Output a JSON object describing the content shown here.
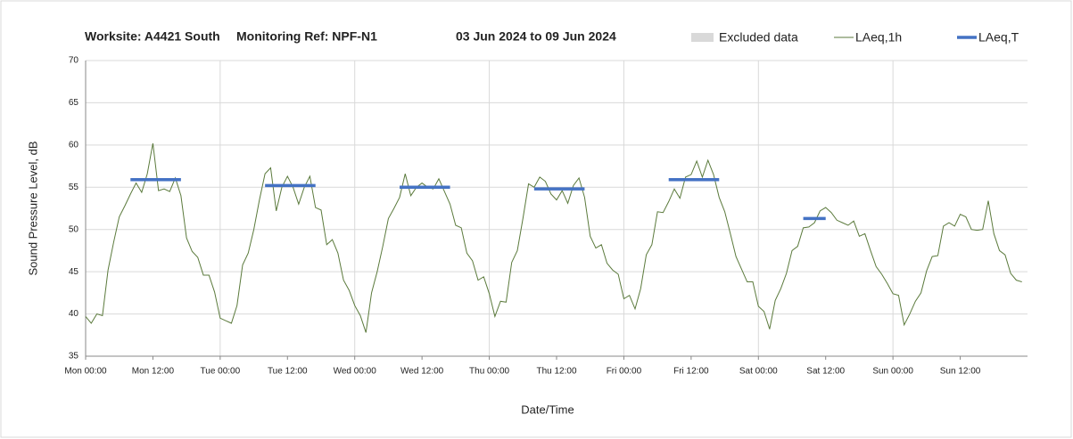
{
  "chart_data": {
    "type": "line",
    "title_parts": [
      "Worksite: A4421 South",
      "Monitoring Ref: NPF-N1",
      "03 Jun 2024 to 09 Jun 2024"
    ],
    "x_label": "Date/Time",
    "y_label": "Sound Pressure Level, dB",
    "excluded_data": {
      "name": "Excluded data",
      "color": "#d9d9d9"
    },
    "categories": [
      "Mon 00:00",
      null,
      null,
      null,
      null,
      null,
      null,
      null,
      null,
      null,
      null,
      null,
      "Mon 12:00",
      null,
      null,
      null,
      null,
      null,
      null,
      null,
      null,
      null,
      null,
      null,
      "Tue 00:00",
      null,
      null,
      null,
      null,
      null,
      null,
      null,
      null,
      null,
      null,
      null,
      "Tue 12:00",
      null,
      null,
      null,
      null,
      null,
      null,
      null,
      null,
      null,
      null,
      null,
      "Wed 00:00",
      null,
      null,
      null,
      null,
      null,
      null,
      null,
      null,
      null,
      null,
      null,
      "Wed 12:00",
      null,
      null,
      null,
      null,
      null,
      null,
      null,
      null,
      null,
      null,
      null,
      "Thu 00:00",
      null,
      null,
      null,
      null,
      null,
      null,
      null,
      null,
      null,
      null,
      null,
      "Thu 12:00",
      null,
      null,
      null,
      null,
      null,
      null,
      null,
      null,
      null,
      null,
      null,
      "Fri 00:00",
      null,
      null,
      null,
      null,
      null,
      null,
      null,
      null,
      null,
      null,
      null,
      "Fri 12:00",
      null,
      null,
      null,
      null,
      null,
      null,
      null,
      null,
      null,
      null,
      null,
      "Sat 00:00",
      null,
      null,
      null,
      null,
      null,
      null,
      null,
      null,
      null,
      null,
      null,
      "Sat 12:00",
      null,
      null,
      null,
      null,
      null,
      null,
      null,
      null,
      null,
      null,
      null,
      "Sun 00:00",
      null,
      null,
      null,
      null,
      null,
      null,
      null,
      null,
      null,
      null,
      null,
      "Sun 12:00",
      null,
      null,
      null,
      null,
      null,
      null,
      null,
      null,
      null,
      null,
      null
    ],
    "series": [
      {
        "name": "LAeq,1h",
        "color": "#5b7a3c",
        "values": [
          39.7,
          38.9,
          40,
          39.8,
          45.2,
          48.5,
          51.5,
          52.8,
          54.2,
          55.5,
          54.4,
          56.6,
          60.2,
          54.6,
          54.8,
          54.5,
          56.1,
          54,
          49,
          47.4,
          46.7,
          44.6,
          44.6,
          42.6,
          39.5,
          39.2,
          38.9,
          41,
          45.8,
          47.2,
          50,
          53.5,
          56.6,
          57.3,
          52.2,
          55,
          56.3,
          55,
          53,
          55,
          56.3,
          52.6,
          52.3,
          48.2,
          48.8,
          47.2,
          44,
          42.8,
          41,
          39.8,
          37.8,
          42.5,
          45,
          48,
          51.3,
          52.5,
          53.8,
          56.6,
          54,
          55,
          55.5,
          55,
          54.8,
          56,
          54.5,
          53,
          50.5,
          50.2,
          47.2,
          46.3,
          44,
          44.4,
          42.4,
          39.7,
          41.5,
          41.4,
          46.1,
          47.5,
          51.3,
          55.4,
          55,
          56.2,
          55.7,
          54.2,
          53.5,
          54.6,
          53.1,
          55.2,
          56.1,
          53.8,
          49.2,
          47.8,
          48.2,
          46,
          45.2,
          44.7,
          41.8,
          42.2,
          40.6,
          43,
          47,
          48.2,
          52.1,
          52,
          53.3,
          54.8,
          53.7,
          56.2,
          56.5,
          58.1,
          56.2,
          58.2,
          56.5,
          53.8,
          52.1,
          49.5,
          46.8,
          45.3,
          43.8,
          43.8,
          40.9,
          40.3,
          38.2,
          41.6,
          43,
          44.8,
          47.5,
          48,
          50.2,
          50.3,
          50.8,
          52.2,
          52.6,
          52,
          51.1,
          50.8,
          50.5,
          51,
          49.2,
          49.5,
          47.5,
          45.6,
          44.7,
          43.6,
          42.4,
          42.2,
          38.7,
          40,
          41.5,
          42.5,
          45.1,
          46.8,
          46.9,
          50.4,
          50.8,
          50.4,
          51.8,
          51.5,
          50,
          49.9,
          50,
          53.4,
          49.5,
          47.5,
          47,
          44.8,
          44,
          43.8
        ]
      },
      {
        "name": "LAeq,T",
        "color": "#4472c4",
        "values": [
          null,
          null,
          null,
          null,
          null,
          null,
          null,
          null,
          55.9,
          55.9,
          55.9,
          55.9,
          55.9,
          55.9,
          55.9,
          55.9,
          55.9,
          55.9,
          null,
          null,
          null,
          null,
          null,
          null,
          null,
          null,
          null,
          null,
          null,
          null,
          null,
          null,
          55.2,
          55.2,
          55.2,
          55.2,
          55.2,
          55.2,
          55.2,
          55.2,
          55.2,
          55.2,
          null,
          null,
          null,
          null,
          null,
          null,
          null,
          null,
          null,
          null,
          null,
          null,
          null,
          null,
          55.0,
          55.0,
          55.0,
          55.0,
          55.0,
          55.0,
          55.0,
          55.0,
          55.0,
          55.0,
          null,
          null,
          null,
          null,
          null,
          null,
          null,
          null,
          null,
          null,
          null,
          null,
          null,
          null,
          54.8,
          54.8,
          54.8,
          54.8,
          54.8,
          54.8,
          54.8,
          54.8,
          54.8,
          54.8,
          null,
          null,
          null,
          null,
          null,
          null,
          null,
          null,
          null,
          null,
          null,
          null,
          null,
          null,
          55.9,
          55.9,
          55.9,
          55.9,
          55.9,
          55.9,
          55.9,
          55.9,
          55.9,
          55.9,
          null,
          null,
          null,
          null,
          null,
          null,
          null,
          null,
          null,
          null,
          null,
          null,
          null,
          null,
          51.3,
          51.3,
          51.3,
          51.3,
          51.3,
          null,
          null,
          null,
          null,
          null,
          null,
          null,
          null,
          null,
          null,
          null,
          null,
          null,
          null,
          null,
          null,
          null,
          null,
          null,
          null,
          null,
          null,
          null,
          null,
          null,
          null,
          null,
          null,
          null,
          null,
          null,
          null,
          null,
          null,
          null
        ]
      }
    ],
    "ylim": [
      35,
      70
    ],
    "yticks": [
      35,
      40,
      45,
      50,
      55,
      60,
      65,
      70
    ],
    "grid": true
  }
}
